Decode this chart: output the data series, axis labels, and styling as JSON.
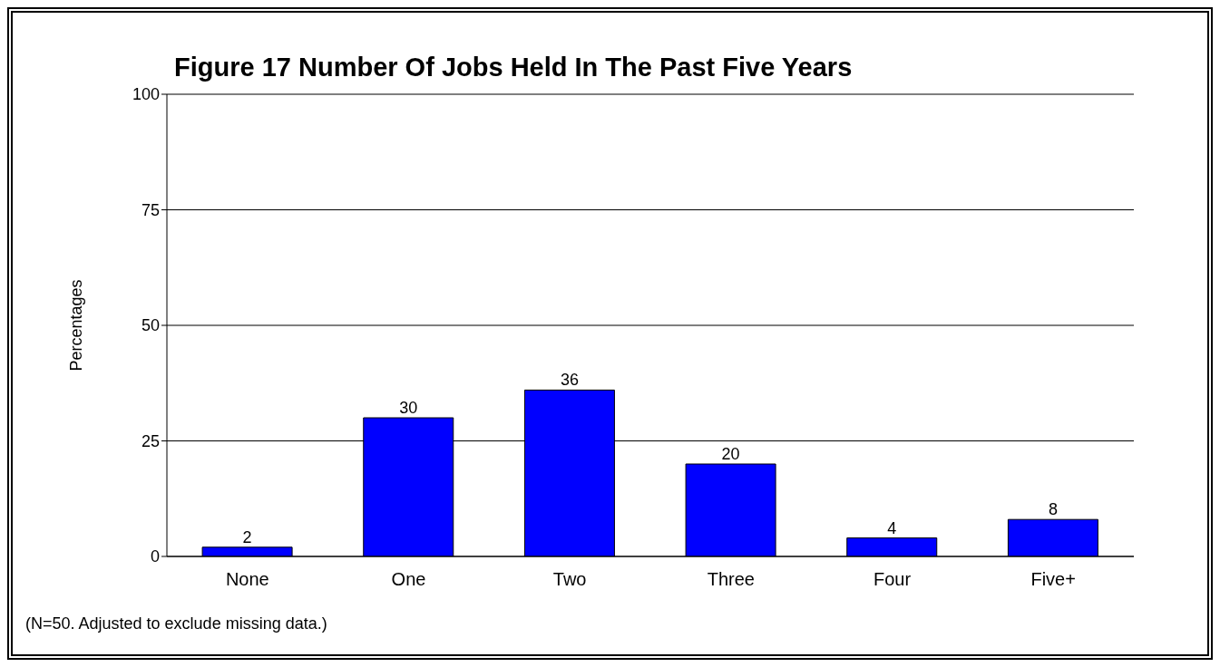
{
  "chart_data": {
    "type": "bar",
    "title": "Figure 17  Number Of Jobs Held In The Past Five Years",
    "ylabel": "Percentages",
    "categories": [
      "None",
      "One",
      "Two",
      "Three",
      "Four",
      "Five+"
    ],
    "values": [
      2,
      30,
      36,
      20,
      4,
      8
    ],
    "color": "#0000ff",
    "ylim": [
      0,
      100
    ],
    "yticks": [
      0,
      25,
      50,
      75,
      100
    ],
    "grid": "y",
    "data_labels": true,
    "annotations": [
      "(N=50. Adjusted to exclude missing data.)"
    ]
  }
}
